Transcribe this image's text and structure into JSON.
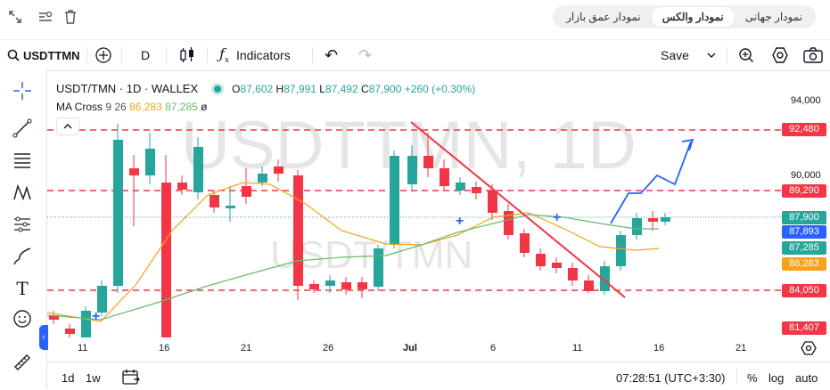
{
  "top_tabs": [
    "نمودار جهانی",
    "نمودار والکس",
    "نمودار عمق بازار"
  ],
  "toolbar": {
    "symbol": "USDTTMN",
    "interval": "D",
    "indicators": "Indicators",
    "save": "Save"
  },
  "legend": {
    "title": "USDT/TMN · 1D · WALLEX",
    "o_label": "O",
    "o": "87,602",
    "h_label": "H",
    "h": "87,991",
    "l_label": "L",
    "l": "87,492",
    "c_label": "C",
    "c": "87,900",
    "change": "+260 (+0.30%)",
    "ma_name": "MA Cross",
    "ma_params": "9 26",
    "ma_fast": "86,283",
    "ma_slow": "87,285",
    "ma_flag": "ø"
  },
  "watermark": {
    "big": "USDTTMN, 1D",
    "small": "USDT/TMN"
  },
  "price_axis": {
    "ticks": [
      "94,000",
      "90,000"
    ],
    "labels": [
      {
        "text": "92,480",
        "color": "#f23645"
      },
      {
        "text": "89,290",
        "color": "#f23645"
      },
      {
        "text": "87,900",
        "color": "#26a69a"
      },
      {
        "text": "87,893",
        "color": "#2962ff"
      },
      {
        "text": "87,285",
        "color": "#26a69a"
      },
      {
        "text": "86,283",
        "color": "#f7a21b"
      },
      {
        "text": "84,050",
        "color": "#f23645"
      },
      {
        "text": "81,407",
        "color": "#f23645"
      }
    ]
  },
  "time_axis": [
    "11",
    "16",
    "21",
    "26",
    "Jul",
    "6",
    "11",
    "16",
    "21"
  ],
  "bottom": {
    "range_1d": "1d",
    "range_1w": "1w",
    "time": "07:28:51 (UTC+3:30)",
    "percent": "%",
    "log": "log",
    "auto": "auto"
  },
  "colors": {
    "up": "#26a69a",
    "down": "#f23645",
    "ma_fast": "#f7a21b",
    "ma_slow": "#66bb6a",
    "blue": "#2962ff"
  }
}
